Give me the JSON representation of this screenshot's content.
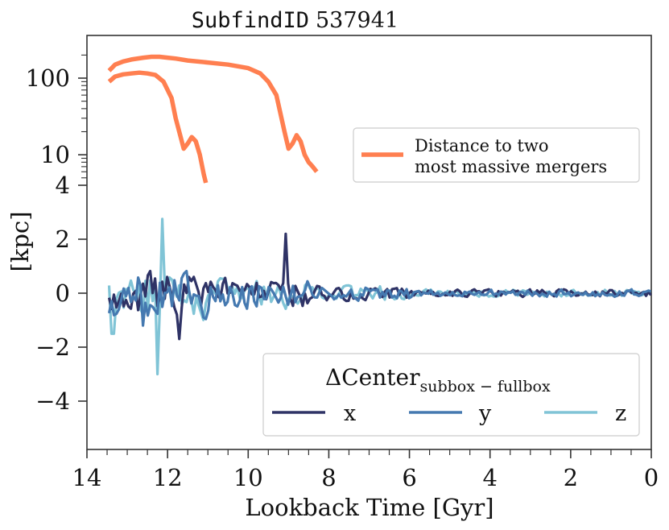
{
  "chart_data": {
    "type": "line",
    "title_prefix": "SubfindID",
    "title_id": "537941",
    "xlabel": "Lookback Time [Gyr]",
    "ylabel": "[kpc]",
    "xlim": [
      14,
      0
    ],
    "x_tick_labels": [
      "14",
      "12",
      "10",
      "8",
      "6",
      "4",
      "2",
      "0"
    ],
    "x_ticks": [
      14,
      12,
      10,
      8,
      6,
      4,
      2,
      0
    ],
    "y_tick_labels": [
      "−4",
      "−2",
      "0",
      "2",
      "4",
      "10",
      "100"
    ],
    "y_scale": "linear below 4, logarithmic above (4 to ~200)",
    "grid": false,
    "legend_distance": {
      "placement": "upper-right",
      "label_line1": "Distance to two",
      "label_line2": "most massive mergers",
      "color": "#ff7f50"
    },
    "legend_center": {
      "placement": "lower-right",
      "title_main": "ΔCenter",
      "title_sub": "subbox − fullbox",
      "entries": [
        {
          "name": "x",
          "color": "#2f3366"
        },
        {
          "name": "y",
          "color": "#4579b0"
        },
        {
          "name": "z",
          "color": "#80c4d6"
        }
      ]
    },
    "series": [
      {
        "name": "Distance to two most massive mergers",
        "component": "merger 1",
        "color": "#ff7f50",
        "x": [
          13.45,
          13.3,
          13.1,
          12.9,
          12.6,
          12.4,
          12.2,
          12.0,
          11.8,
          11.5,
          11.0,
          10.5,
          10.0,
          9.7,
          9.5,
          9.3,
          9.1,
          9.0,
          8.9,
          8.8,
          8.7,
          8.6,
          8.5,
          8.4,
          8.3
        ],
        "y": [
          125,
          150,
          165,
          175,
          185,
          190,
          190,
          185,
          180,
          170,
          160,
          150,
          135,
          115,
          90,
          60,
          20,
          12,
          14,
          18,
          15,
          10,
          8,
          7,
          6
        ]
      },
      {
        "name": "",
        "component": "merger 2",
        "color": "#ff7f50",
        "x": [
          13.45,
          13.3,
          13.1,
          12.9,
          12.7,
          12.5,
          12.3,
          12.1,
          11.9,
          11.8,
          11.6,
          11.5,
          11.4,
          11.3,
          11.2,
          11.1,
          11.05
        ],
        "y": [
          90,
          105,
          112,
          115,
          118,
          115,
          110,
          90,
          55,
          30,
          12,
          14,
          17,
          15,
          10,
          5.5,
          4.3
        ]
      }
    ]
  }
}
